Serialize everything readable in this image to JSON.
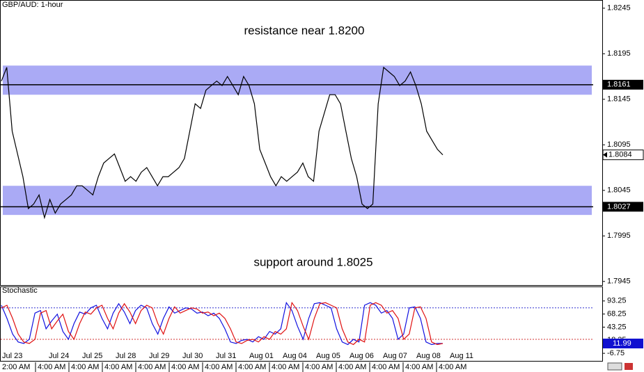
{
  "chart_data": [
    {
      "type": "line",
      "title": "GBP/AUD: 1-hour",
      "color": "#000000",
      "values": [
        1.8165,
        1.818,
        1.811,
        1.8085,
        1.806,
        1.8025,
        1.803,
        1.804,
        1.8015,
        1.8035,
        1.802,
        1.803,
        1.8035,
        1.804,
        1.805,
        1.805,
        1.8045,
        1.804,
        1.806,
        1.8075,
        1.808,
        1.8085,
        1.807,
        1.8055,
        1.806,
        1.8055,
        1.8065,
        1.807,
        1.806,
        1.805,
        1.806,
        1.806,
        1.8065,
        1.807,
        1.808,
        1.811,
        1.814,
        1.8135,
        1.8155,
        1.816,
        1.8165,
        1.816,
        1.817,
        1.816,
        1.815,
        1.817,
        1.816,
        1.814,
        1.809,
        1.8075,
        1.806,
        1.805,
        1.806,
        1.8055,
        1.806,
        1.8065,
        1.8075,
        1.806,
        1.8055,
        1.811,
        1.813,
        1.815,
        1.815,
        1.814,
        1.811,
        1.808,
        1.806,
        1.803,
        1.8025,
        1.803,
        1.814,
        1.818,
        1.8175,
        1.817,
        1.816,
        1.8165,
        1.8175,
        1.816,
        1.814,
        1.811,
        1.81,
        1.809,
        1.8084
      ],
      "ylim": [
        1.7941,
        1.8254
      ],
      "yticks": [
        1.8245,
        1.8195,
        1.8145,
        1.8095,
        1.8045,
        1.7995,
        1.7945
      ],
      "bands": [
        {
          "from": 1.815,
          "to": 1.8182,
          "color": "#aaaaf5"
        },
        {
          "from": 1.8018,
          "to": 1.805,
          "color": "#aaaaf5"
        }
      ],
      "levels": [
        1.8161,
        1.8027
      ],
      "last": 1.8084,
      "annotations": [
        "resistance near 1.8200",
        "support around 1.8025"
      ]
    },
    {
      "type": "line",
      "title": "Stochastic",
      "series": [
        {
          "color": "#1010e0",
          "values": [
            85,
            60,
            30,
            15,
            12,
            20,
            70,
            75,
            40,
            55,
            68,
            35,
            20,
            50,
            72,
            68,
            80,
            85,
            60,
            40,
            70,
            88,
            72,
            50,
            75,
            85,
            80,
            50,
            30,
            60,
            82,
            70,
            75,
            80,
            78,
            70,
            72,
            65,
            70,
            60,
            40,
            15,
            12,
            18,
            20,
            15,
            25,
            20,
            35,
            30,
            40,
            90,
            75,
            45,
            20,
            60,
            88,
            90,
            85,
            80,
            40,
            15,
            10,
            20,
            15,
            85,
            90,
            85,
            70,
            75,
            60,
            20,
            30,
            80,
            82,
            60,
            15,
            10,
            12,
            11.99
          ]
        },
        {
          "color": "#e01010",
          "values": [
            80,
            85,
            60,
            30,
            15,
            12,
            20,
            70,
            75,
            40,
            55,
            68,
            35,
            20,
            50,
            72,
            68,
            80,
            85,
            60,
            40,
            70,
            88,
            72,
            50,
            75,
            85,
            80,
            50,
            30,
            60,
            82,
            70,
            75,
            80,
            78,
            70,
            72,
            65,
            70,
            60,
            40,
            15,
            12,
            18,
            20,
            15,
            25,
            20,
            35,
            30,
            40,
            90,
            75,
            45,
            20,
            60,
            88,
            90,
            85,
            80,
            40,
            15,
            10,
            20,
            15,
            85,
            90,
            85,
            70,
            75,
            60,
            20,
            30,
            80,
            82,
            60,
            15,
            10,
            12
          ]
        }
      ],
      "ylim": [
        -22.5,
        120.9
      ],
      "yticks": [
        93.25,
        68.25,
        43.25,
        18.25,
        -6.75
      ],
      "levels": [
        {
          "value": 80,
          "color": "#3030d0"
        },
        {
          "value": 20,
          "color": "#d03030"
        }
      ],
      "last": 11.99
    }
  ],
  "x_axis": {
    "dates": [
      "Jul 23",
      "Jul 24",
      "Jul 25",
      "Jul 28",
      "Jul 29",
      "Jul 30",
      "Jul 31",
      "Aug 01",
      "Aug 04",
      "Aug 05",
      "Aug 06",
      "Aug 07",
      "Aug 08",
      "Aug 11"
    ],
    "times": [
      "2:00 AM",
      "4:00 AM",
      "4:00 AM",
      "4:00 AM",
      "4:00 AM",
      "4:00 AM",
      "4:00 AM",
      "4:00 AM",
      "4:00 AM",
      "4:00 AM",
      "4:00 AM",
      "4:00 AM",
      "4:00 AM",
      "4:00 AM"
    ]
  }
}
